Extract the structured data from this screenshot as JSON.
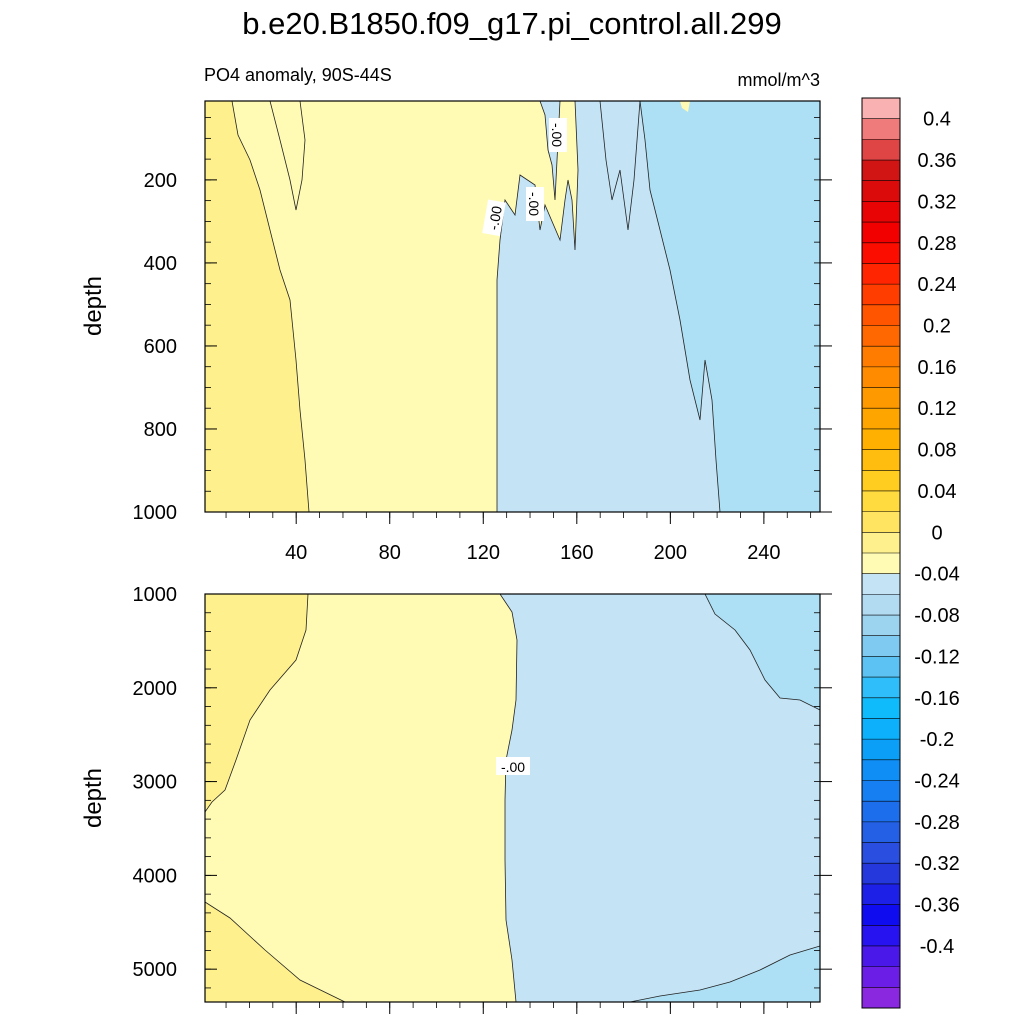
{
  "title": "b.e20.B1850.f09_g17.pi_control.all.299",
  "subtitle_left": "PO4 anomaly, 90S-44S",
  "subtitle_right": "mmol/m^3",
  "chart_data": [
    {
      "type": "heatmap",
      "panel": "upper",
      "ylabel": "depth",
      "xlim": [
        1,
        264
      ],
      "ylim": [
        1000,
        10
      ],
      "y_reversed": true,
      "xticks": [
        40,
        80,
        120,
        160,
        200,
        240
      ],
      "xtick_labels": [
        "40",
        "80",
        "120",
        "160",
        "200",
        "240"
      ],
      "yticks": [
        200,
        400,
        600,
        800,
        1000
      ],
      "ytick_labels": [
        "200",
        "400",
        "600",
        "800",
        "1000"
      ],
      "regions": [
        {
          "range": [
            0.02,
            0.04
          ],
          "x_range": [
            1,
            45
          ],
          "color": "#fef08c"
        },
        {
          "range": [
            0,
            0.02
          ],
          "x_range": [
            45,
            127
          ],
          "color": "#fffbb4"
        },
        {
          "range": [
            -0.02,
            0
          ],
          "x_range": [
            127,
            220
          ],
          "color": "#c4e3f5"
        },
        {
          "range": [
            -0.04,
            -0.02
          ],
          "x_range": [
            220,
            264
          ],
          "color": "#ade0f4"
        }
      ],
      "contour_labels": [
        "-.00",
        "-.00",
        "-.00"
      ]
    },
    {
      "type": "heatmap",
      "panel": "lower",
      "ylabel": "depth",
      "xlim": [
        1,
        264
      ],
      "ylim": [
        5350,
        1000
      ],
      "y_reversed": true,
      "yticks": [
        1000,
        2000,
        3000,
        4000,
        5000
      ],
      "ytick_labels": [
        "1000",
        "2000",
        "3000",
        "4000",
        "5000"
      ],
      "regions": [
        {
          "range": [
            0.02,
            0.04
          ],
          "color": "#fef08c"
        },
        {
          "range": [
            0,
            0.02
          ],
          "color": "#fffbb4"
        },
        {
          "range": [
            -0.02,
            0
          ],
          "color": "#c4e3f5"
        },
        {
          "range": [
            -0.04,
            -0.02
          ],
          "color": "#ade0f4"
        }
      ],
      "contour_labels": [
        "-.00"
      ]
    },
    {
      "type": "colorbar",
      "levels": [
        -0.42,
        -0.4,
        -0.38,
        -0.36,
        -0.34,
        -0.32,
        -0.3,
        -0.28,
        -0.26,
        -0.24,
        -0.22,
        -0.2,
        -0.18,
        -0.16,
        -0.14,
        -0.12,
        -0.1,
        -0.08,
        -0.06,
        -0.04,
        -0.02,
        0,
        0.02,
        0.04,
        0.06,
        0.08,
        0.1,
        0.12,
        0.14,
        0.16,
        0.18,
        0.2,
        0.22,
        0.24,
        0.26,
        0.28,
        0.3,
        0.32,
        0.34,
        0.36,
        0.38,
        0.4,
        0.42
      ],
      "tick_labels": [
        "0.4",
        "0.36",
        "0.32",
        "0.28",
        "0.24",
        "0.2",
        "0.16",
        "0.12",
        "0.08",
        "0.04",
        "0",
        "-0.04",
        "-0.08",
        "-0.12",
        "-0.16",
        "-0.2",
        "-0.24",
        "-0.28",
        "-0.32",
        "-0.36",
        "-0.4"
      ],
      "colors_top_to_bottom": [
        "#f9b1b1",
        "#f07b7b",
        "#e04545",
        "#d11515",
        "#dc0b0b",
        "#e80404",
        "#f20000",
        "#fb0d00",
        "#ff2500",
        "#ff3d00",
        "#ff5400",
        "#ff6800",
        "#ff7c00",
        "#ff8c00",
        "#ff9900",
        "#ffa500",
        "#ffb000",
        "#ffbd10",
        "#ffcc20",
        "#ffdb40",
        "#fee460",
        "#fef08c",
        "#fffbb4",
        "#c4e3f5",
        "#b2dbf2",
        "#9cd3ef",
        "#7ecaf0",
        "#5cc2f3",
        "#30befa",
        "#10bbfb",
        "#0db0fa",
        "#0c9ff8",
        "#0f8ff6",
        "#167ff2",
        "#1d6eec",
        "#2360e6",
        "#2a4fe0",
        "#2538dc",
        "#1d20e6",
        "#0f0cf0",
        "#2712f0",
        "#4a18e8",
        "#6b1fe6",
        "#8a28e0"
      ]
    }
  ]
}
